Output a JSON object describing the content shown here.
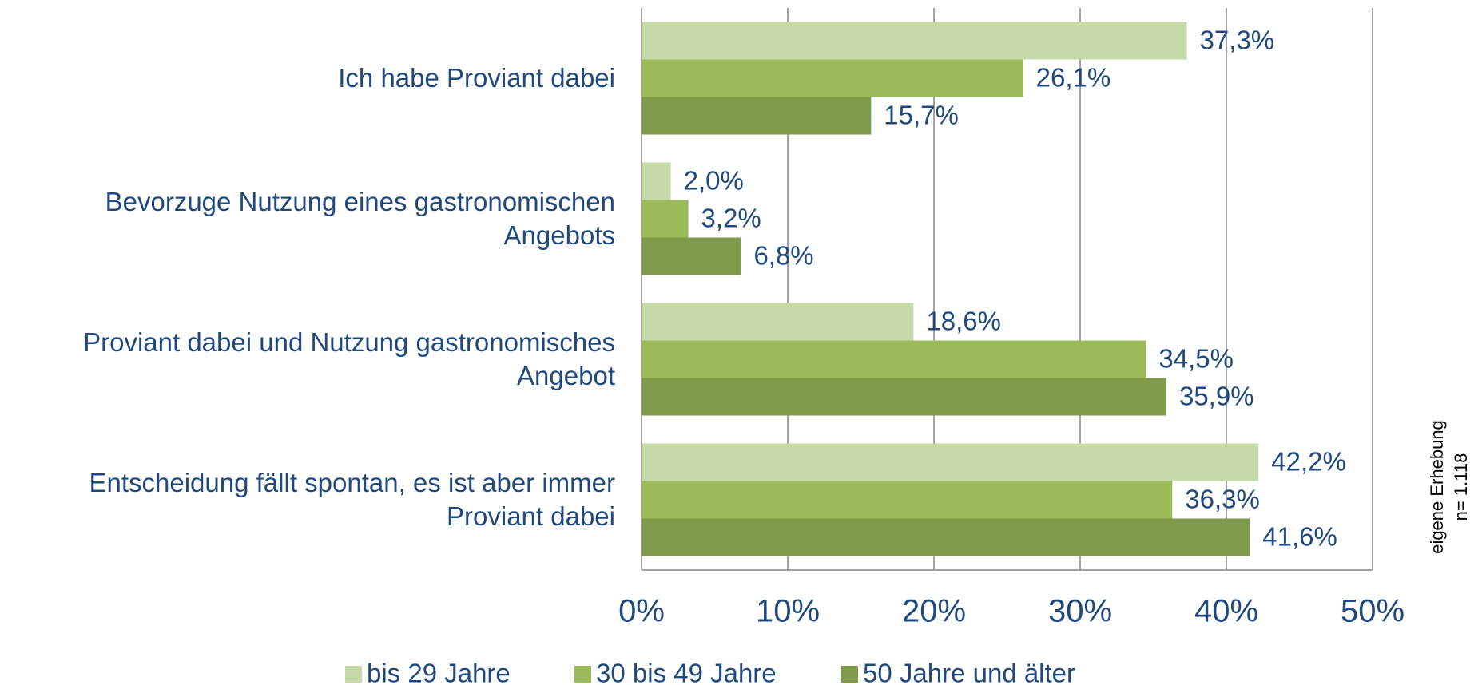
{
  "chart_data": {
    "type": "hbar",
    "categories": [
      "Ich habe Proviant dabei",
      "Bevorzuge Nutzung eines gastronomischen Angebots",
      "Proviant dabei und Nutzung gastronomisches Angebot",
      "Entscheidung fällt spontan, es ist aber immer Proviant dabei"
    ],
    "series": [
      {
        "name": "bis 29 Jahre",
        "color": "#c6d9a9",
        "values": [
          37.3,
          2.0,
          18.6,
          42.2
        ],
        "value_labels": [
          "37,3%",
          "2,0%",
          "18,6%",
          "42,2%"
        ]
      },
      {
        "name": "30 bis 49 Jahre",
        "color": "#9bbb59",
        "values": [
          26.1,
          3.2,
          34.5,
          36.3
        ],
        "value_labels": [
          "26,1%",
          "3,2%",
          "34,5%",
          "36,3%"
        ]
      },
      {
        "name": "50 Jahre und älter",
        "color": "#7f9a48",
        "values": [
          15.7,
          6.8,
          35.9,
          41.6
        ],
        "value_labels": [
          "15,7%",
          "6,8%",
          "35,9%",
          "41,6%"
        ]
      }
    ],
    "xlim": [
      0,
      50
    ],
    "xticks": [
      {
        "value": 0,
        "label": "0%"
      },
      {
        "value": 10,
        "label": "10%"
      },
      {
        "value": 20,
        "label": "20%"
      },
      {
        "value": 30,
        "label": "30%"
      },
      {
        "value": 40,
        "label": "40%"
      },
      {
        "value": 50,
        "label": "50%"
      }
    ],
    "grid": true,
    "annotations": [
      "eigene Erhebung",
      "n= 1.118"
    ]
  }
}
